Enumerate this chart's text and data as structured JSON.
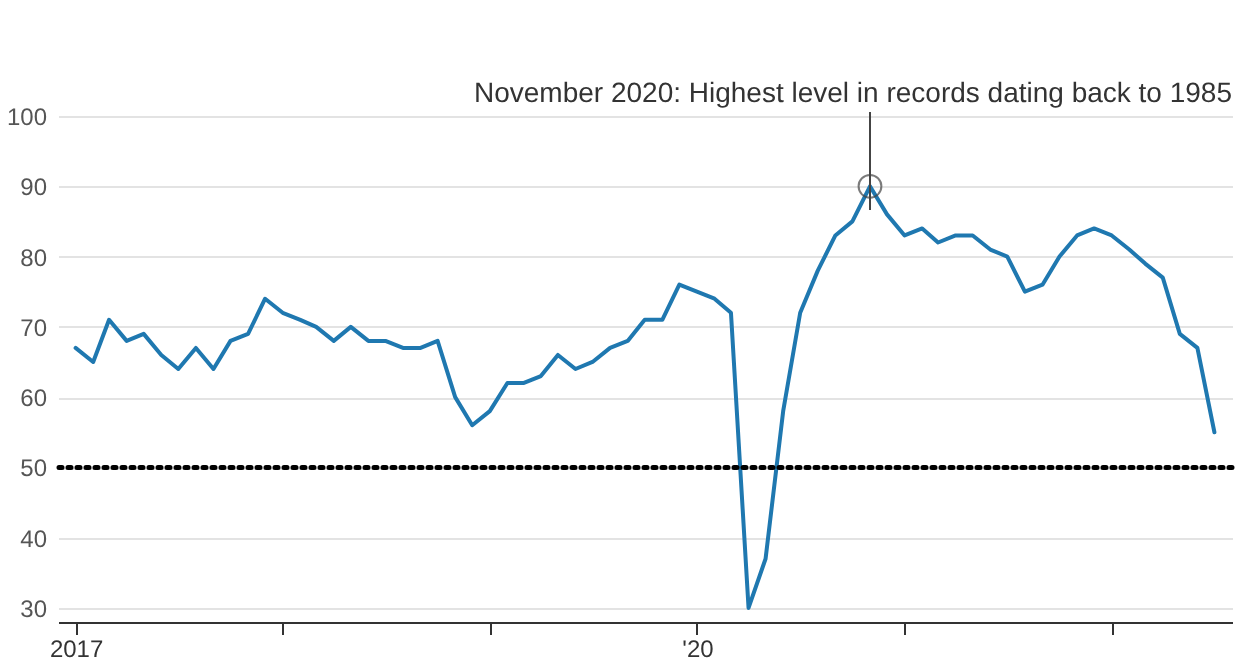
{
  "chart_data": {
    "type": "line",
    "x": [
      "2017-01",
      "2017-02",
      "2017-03",
      "2017-04",
      "2017-05",
      "2017-06",
      "2017-07",
      "2017-08",
      "2017-09",
      "2017-10",
      "2017-11",
      "2017-12",
      "2018-01",
      "2018-02",
      "2018-03",
      "2018-04",
      "2018-05",
      "2018-06",
      "2018-07",
      "2018-08",
      "2018-09",
      "2018-10",
      "2018-11",
      "2018-12",
      "2019-01",
      "2019-02",
      "2019-03",
      "2019-04",
      "2019-05",
      "2019-06",
      "2019-07",
      "2019-08",
      "2019-09",
      "2019-10",
      "2019-11",
      "2019-12",
      "2020-01",
      "2020-02",
      "2020-03",
      "2020-04",
      "2020-05",
      "2020-06",
      "2020-07",
      "2020-08",
      "2020-09",
      "2020-10",
      "2020-11",
      "2020-12",
      "2021-01",
      "2021-02",
      "2021-03",
      "2021-04",
      "2021-05",
      "2021-06",
      "2021-07",
      "2021-08",
      "2021-09",
      "2021-10",
      "2021-11",
      "2021-12",
      "2022-01",
      "2022-02",
      "2022-03",
      "2022-04",
      "2022-05",
      "2022-06",
      "2022-07"
    ],
    "series": [
      {
        "color": "#1f78b0",
        "values": [
          67,
          65,
          71,
          68,
          69,
          66,
          64,
          67,
          64,
          68,
          69,
          74,
          72,
          71,
          70,
          68,
          70,
          68,
          68,
          67,
          67,
          68,
          60,
          56,
          58,
          62,
          62,
          63,
          66,
          64,
          65,
          67,
          68,
          71,
          71,
          76,
          75,
          74,
          72,
          30,
          37,
          58,
          72,
          78,
          83,
          85,
          90,
          86,
          83,
          84,
          82,
          83,
          83,
          81,
          80,
          75,
          76,
          80,
          83,
          84,
          83,
          81,
          79,
          77,
          69,
          67,
          55
        ]
      }
    ],
    "xlim": [
      "2016-12",
      "2022-08"
    ],
    "xticks": [
      {
        "value": "2017-01",
        "label": "2017"
      },
      {
        "value": "2018-01",
        "label": null
      },
      {
        "value": "2019-01",
        "label": null
      },
      {
        "value": "2020-01",
        "label": "'20"
      },
      {
        "value": "2021-01",
        "label": null
      },
      {
        "value": "2022-01",
        "label": null
      }
    ],
    "ylim": [
      28,
      100
    ],
    "yticks": [
      30,
      40,
      50,
      60,
      70,
      80,
      90,
      100
    ],
    "grid": "y",
    "ref_lines": [
      {
        "axis": "y",
        "value": 50,
        "color": "#000000",
        "line_style": "dotted"
      }
    ],
    "annotations": [
      {
        "text": "November 2020: Highest level in records dating back to 1985",
        "x": "2020-11",
        "y": 90
      }
    ]
  }
}
